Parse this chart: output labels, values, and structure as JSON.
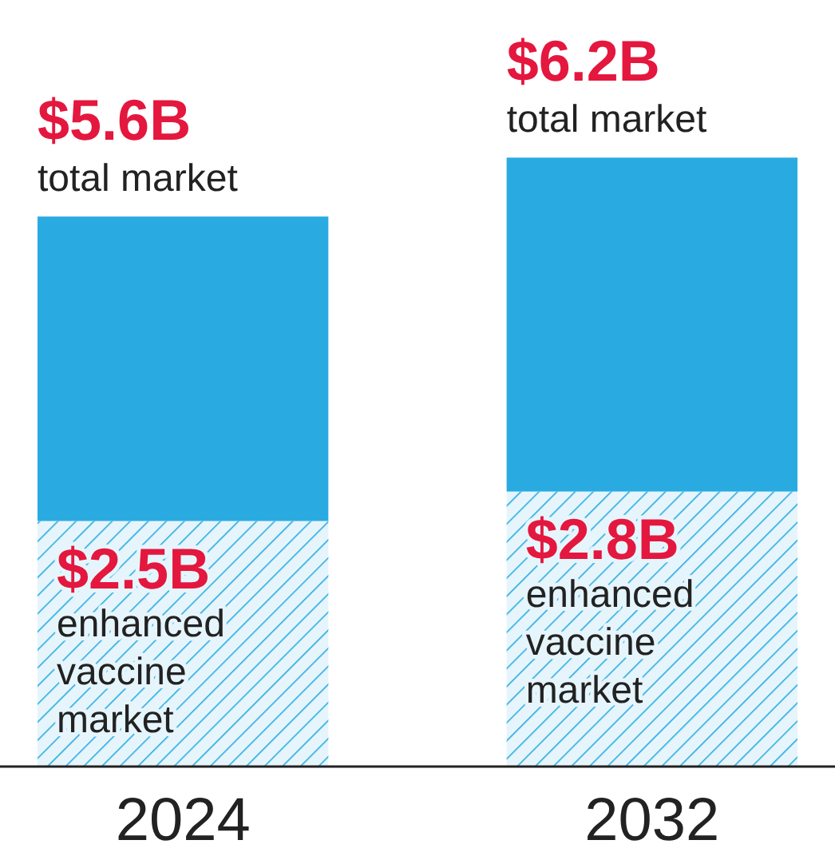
{
  "chart_data": {
    "type": "bar",
    "stacked": true,
    "categories": [
      "2024",
      "2032"
    ],
    "series": [
      {
        "color": "#29abe2",
        "values": [
          2.5,
          2.8
        ],
        "value_labels": [
          "$2.5B",
          "$2.8B"
        ]
      },
      {
        "color": "#29abe2",
        "values": [
          3.1,
          3.4
        ]
      }
    ],
    "totals": [
      "$5.6B",
      "$6.2B"
    ],
    "tick_labels": "x",
    "annotations": [
      {
        "text": "total market",
        "x": "2024",
        "y": 5.6
      },
      {
        "text": "total market",
        "x": "2032",
        "y": 6.2
      },
      {
        "text": "enhanced vaccine market",
        "x": "2024",
        "y": 2.5
      },
      {
        "text": "enhanced vaccine market",
        "x": "2032",
        "y": 2.8
      }
    ]
  }
}
